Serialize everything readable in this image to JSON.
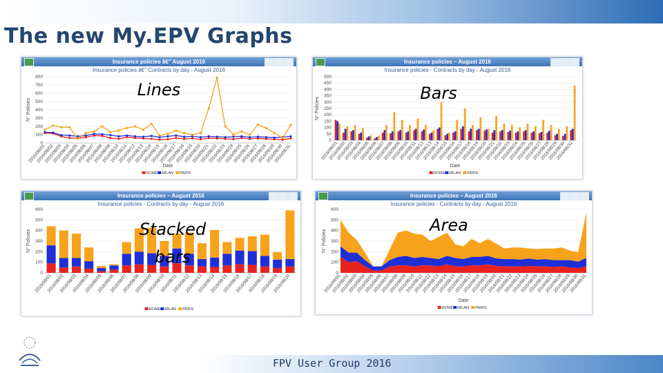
{
  "slide": {
    "title": "The new My.EPV Graphs",
    "footer": "FPV User Group 2016"
  },
  "colors": {
    "rome": "#e8231f",
    "milan": "#1f2fd6",
    "paris": "#f7a21b",
    "header": "#3e74b7"
  },
  "panels": [
    {
      "title": "Insurance policies â€\" August 2016",
      "subtitle": "Insurance policies â€\" Contracts by day - August 2016",
      "overlay": "Lines"
    },
    {
      "title": "Insurance policies – August 2016",
      "subtitle": "Insurance policies - Contracts by day - August 2016",
      "overlay": "Bars"
    },
    {
      "title": "Insurance policies – August 2016",
      "subtitle": "Insurance policies - Contracts by day - August 2016",
      "overlay": "Stacked bars"
    },
    {
      "title": "Insurance policies – August 2016",
      "subtitle": "Insurance policies - Contracts by day - August 2016",
      "overlay": "Area"
    }
  ],
  "chart_data": [
    {
      "type": "line",
      "ylabel": "N° Policies",
      "xlabel": "Date",
      "ylim": [
        0,
        800
      ],
      "yticks": [
        0,
        100,
        200,
        300,
        400,
        500,
        600,
        700,
        800
      ],
      "x": [
        "2016/08/01",
        "2016/08/02",
        "2016/08/03",
        "2016/08/04",
        "2016/08/05",
        "2016/08/06",
        "2016/08/07",
        "2016/08/08",
        "2016/08/09",
        "2016/08/10",
        "2016/08/11",
        "2016/08/12",
        "2016/08/13",
        "2016/08/14",
        "2016/08/15",
        "2016/08/16",
        "2016/08/17",
        "2016/08/18",
        "2016/08/19",
        "2016/08/20",
        "2016/08/21",
        "2016/08/22",
        "2016/08/23",
        "2016/08/24",
        "2016/08/25",
        "2016/08/26",
        "2016/08/27",
        "2016/08/28",
        "2016/08/29",
        "2016/08/30",
        "2016/08/31"
      ],
      "series": [
        {
          "name": "ROME",
          "values": [
            120,
            115,
            80,
            60,
            55,
            70,
            90,
            85,
            60,
            50,
            70,
            60,
            55,
            50,
            40,
            45,
            60,
            50,
            55,
            45,
            60,
            55,
            50,
            45,
            60,
            50,
            55,
            50,
            45,
            40,
            55
          ]
        },
        {
          "name": "MILAN",
          "values": [
            130,
            125,
            95,
            90,
            80,
            90,
            110,
            105,
            95,
            80,
            90,
            80,
            75,
            85,
            70,
            80,
            90,
            75,
            80,
            70,
            80,
            75,
            70,
            75,
            80,
            70,
            75,
            70,
            65,
            70,
            80
          ]
        },
        {
          "name": "PARIS",
          "values": [
            160,
            210,
            190,
            190,
            50,
            120,
            140,
            200,
            130,
            150,
            180,
            200,
            160,
            230,
            90,
            110,
            150,
            120,
            100,
            120,
            420,
            790,
            200,
            100,
            140,
            100,
            220,
            180,
            120,
            60,
            220
          ]
        }
      ],
      "legend": "bottom"
    },
    {
      "type": "bar",
      "ylabel": "N° Policies",
      "xlabel": "Date",
      "ylim": [
        0,
        500
      ],
      "yticks": [
        0,
        50,
        100,
        150,
        200,
        250,
        300,
        350,
        400,
        450,
        500
      ],
      "categories": [
        "2016/08/01",
        "2016/08/02",
        "2016/08/03",
        "2016/08/04",
        "2016/08/05",
        "2016/08/06",
        "2016/08/07",
        "2016/08/08",
        "2016/08/09",
        "2016/08/10",
        "2016/08/11",
        "2016/08/12",
        "2016/08/13",
        "2016/08/14",
        "2016/08/15",
        "2016/08/16",
        "2016/08/17",
        "2016/08/18",
        "2016/08/19",
        "2016/08/20",
        "2016/08/21",
        "2016/08/22",
        "2016/08/23",
        "2016/08/24",
        "2016/08/25",
        "2016/08/26",
        "2016/08/27",
        "2016/08/28",
        "2016/08/29",
        "2016/08/30",
        "2016/08/31"
      ],
      "series": [
        {
          "name": "ROME",
          "values": [
            160,
            60,
            70,
            50,
            20,
            15,
            60,
            55,
            70,
            60,
            80,
            70,
            50,
            90,
            40,
            60,
            90,
            70,
            80,
            75,
            60,
            70,
            65,
            60,
            70,
            60,
            55,
            60,
            40,
            35,
            80
          ]
        },
        {
          "name": "MILAN",
          "values": [
            150,
            90,
            80,
            60,
            30,
            25,
            80,
            70,
            80,
            70,
            90,
            85,
            60,
            100,
            50,
            70,
            110,
            90,
            90,
            85,
            80,
            80,
            75,
            70,
            80,
            70,
            65,
            75,
            50,
            50,
            90
          ]
        },
        {
          "name": "PARIS",
          "values": [
            130,
            110,
            120,
            95,
            40,
            35,
            120,
            220,
            160,
            120,
            170,
            120,
            80,
            300,
            60,
            160,
            250,
            120,
            180,
            90,
            190,
            130,
            120,
            100,
            130,
            110,
            160,
            120,
            90,
            110,
            430
          ]
        }
      ],
      "legend": "bottom"
    },
    {
      "type": "bar",
      "stacked": true,
      "ylabel": "N° Policies",
      "ylim": [
        0,
        600
      ],
      "yticks": [
        0,
        100,
        200,
        300,
        400,
        500,
        600
      ],
      "categories": [
        "2016/08/01",
        "2016/08/02",
        "2016/08/03",
        "2016/08/04",
        "2016/08/05",
        "2016/08/06",
        "2016/08/07",
        "2016/08/08",
        "2016/08/09",
        "2016/08/10",
        "2016/08/11",
        "2016/08/12",
        "2016/08/13",
        "2016/08/14",
        "2016/08/15",
        "2016/08/16",
        "2016/08/17",
        "2016/08/18",
        "2016/08/19",
        "2016/08/20"
      ],
      "series": [
        {
          "name": "ROME",
          "values": [
            90,
            50,
            60,
            40,
            15,
            30,
            70,
            80,
            75,
            60,
            90,
            70,
            60,
            55,
            70,
            80,
            75,
            60,
            45,
            60
          ]
        },
        {
          "name": "MILAN",
          "values": [
            170,
            90,
            80,
            70,
            30,
            40,
            110,
            120,
            110,
            100,
            140,
            110,
            70,
            90,
            110,
            130,
            130,
            100,
            80,
            70
          ]
        },
        {
          "name": "PARIS",
          "values": [
            180,
            260,
            230,
            130,
            20,
            10,
            110,
            220,
            240,
            140,
            140,
            200,
            150,
            260,
            110,
            120,
            140,
            200,
            70,
            460
          ]
        }
      ],
      "legend": "bottom"
    },
    {
      "type": "area",
      "stacked": true,
      "ylabel": "N° Policies",
      "xlabel": "Date",
      "ylim": [
        0,
        600
      ],
      "yticks": [
        0,
        100,
        200,
        300,
        400,
        500,
        600
      ],
      "x": [
        "2016/08/01",
        "2016/08/02",
        "2016/08/03",
        "2016/08/04",
        "2016/08/05",
        "2016/08/06",
        "2016/08/07",
        "2016/08/08",
        "2016/08/09",
        "2016/08/10",
        "2016/08/11",
        "2016/08/12",
        "2016/08/13",
        "2016/08/14",
        "2016/08/15",
        "2016/08/16",
        "2016/08/17",
        "2016/08/18",
        "2016/08/19",
        "2016/08/20",
        "2016/08/21",
        "2016/08/22",
        "2016/08/23",
        "2016/08/24",
        "2016/08/25",
        "2016/08/26",
        "2016/08/27",
        "2016/08/28",
        "2016/08/29",
        "2016/08/30",
        "2016/08/31"
      ],
      "series": [
        {
          "name": "ROME",
          "values": [
            150,
            100,
            110,
            60,
            20,
            20,
            60,
            70,
            70,
            60,
            70,
            70,
            60,
            80,
            60,
            60,
            70,
            70,
            80,
            65,
            60,
            60,
            60,
            65,
            60,
            60,
            55,
            60,
            50,
            45,
            60
          ]
        },
        {
          "name": "MILAN",
          "values": [
            100,
            90,
            80,
            60,
            40,
            40,
            60,
            80,
            90,
            80,
            80,
            70,
            70,
            80,
            80,
            70,
            80,
            80,
            80,
            70,
            70,
            70,
            65,
            70,
            65,
            70,
            65,
            60,
            70,
            60,
            80
          ]
        },
        {
          "name": "PARIS",
          "values": [
            250,
            190,
            120,
            70,
            0,
            0,
            100,
            230,
            240,
            230,
            210,
            160,
            210,
            220,
            130,
            120,
            170,
            130,
            160,
            140,
            100,
            110,
            115,
            95,
            100,
            100,
            110,
            120,
            90,
            90,
            430
          ]
        }
      ],
      "legend": "bottom"
    }
  ]
}
